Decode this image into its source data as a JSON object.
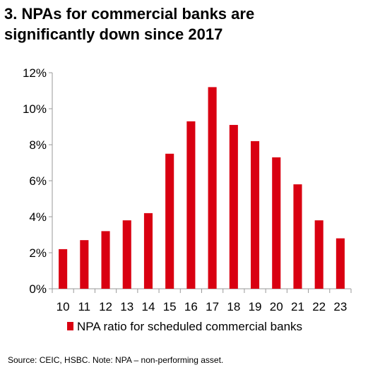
{
  "title_lines": [
    "3. NPAs for commercial banks are",
    "significantly down since 2017"
  ],
  "source_note": "Source: CEIC, HSBC. Note: NPA – non-performing asset.",
  "colors": {
    "bar": "#d90011",
    "axis": "#999999",
    "text": "#000000"
  },
  "chart_data": {
    "type": "bar",
    "categories": [
      "10",
      "11",
      "12",
      "13",
      "14",
      "15",
      "16",
      "17",
      "18",
      "19",
      "20",
      "21",
      "22",
      "23"
    ],
    "series": [
      {
        "name": "NPA ratio for scheduled commercial banks",
        "values": [
          2.2,
          2.7,
          3.2,
          3.8,
          4.2,
          7.5,
          9.3,
          11.2,
          9.1,
          8.2,
          7.3,
          5.8,
          3.8,
          2.8
        ]
      }
    ],
    "y_ticks": [
      "0%",
      "2%",
      "4%",
      "6%",
      "8%",
      "10%",
      "12%"
    ],
    "ylim": [
      0,
      12
    ],
    "grid": false,
    "legend_position": "bottom"
  }
}
